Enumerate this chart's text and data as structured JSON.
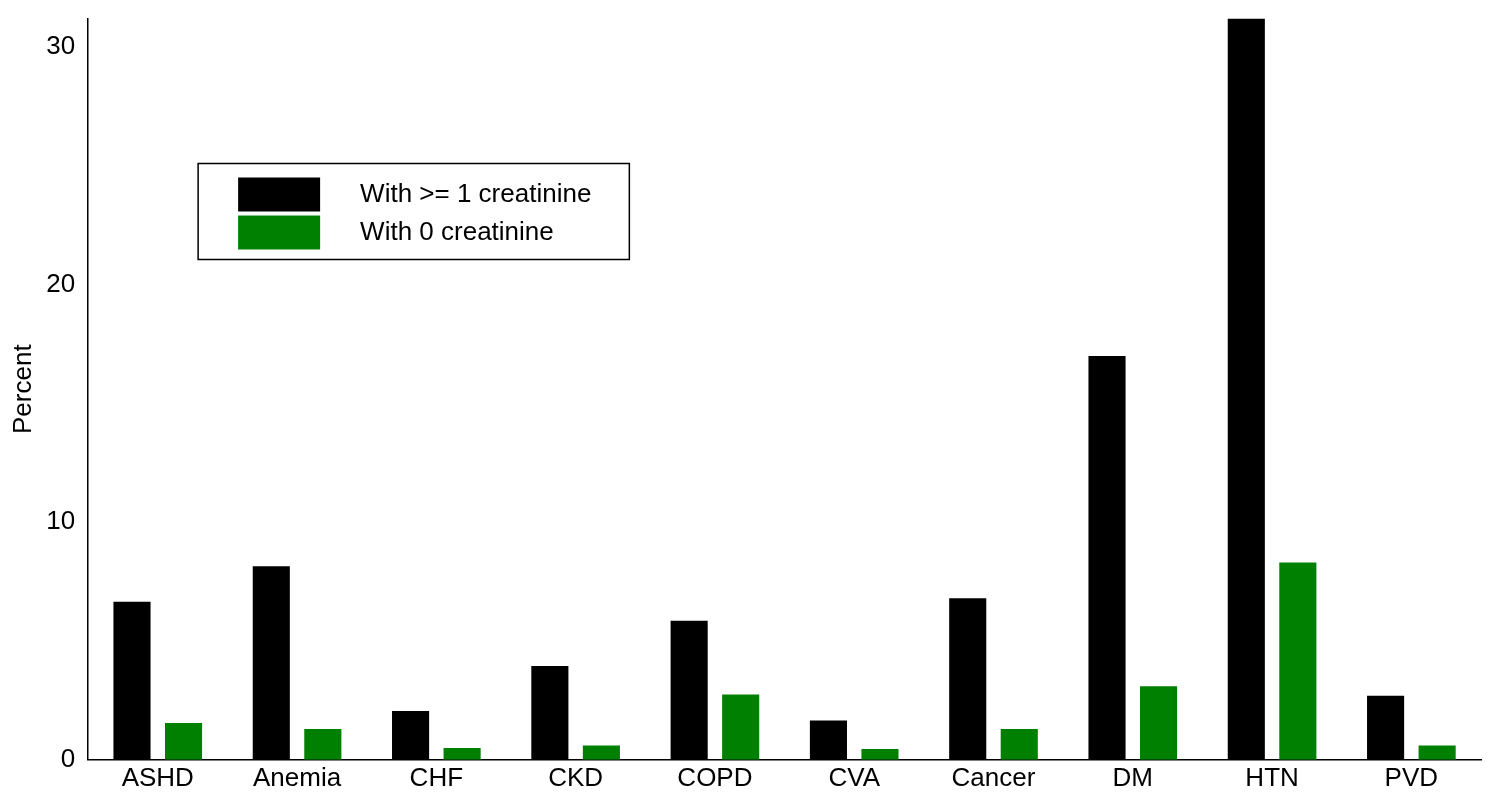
{
  "chart_data": {
    "type": "bar",
    "ylabel": "Percent",
    "categories": [
      "ASHD",
      "Anemia",
      "CHF",
      "CKD",
      "COPD",
      "CVA",
      "Cancer",
      "DM",
      "HTN",
      "PVD"
    ],
    "series": [
      {
        "name": "With >= 1 creatinine",
        "color": "#000000",
        "values": [
          6.65,
          8.15,
          2.05,
          3.95,
          5.85,
          1.65,
          6.8,
          17.0,
          31.2,
          2.7
        ]
      },
      {
        "name": "With 0 creatinine",
        "color": "#008000",
        "values": [
          1.55,
          1.3,
          0.5,
          0.6,
          2.75,
          0.45,
          1.3,
          3.1,
          8.3,
          0.6
        ]
      }
    ],
    "ylim": [
      0,
      31.2
    ],
    "yticks": [
      0,
      10,
      20,
      30
    ],
    "grid": false,
    "legend": "top left"
  }
}
